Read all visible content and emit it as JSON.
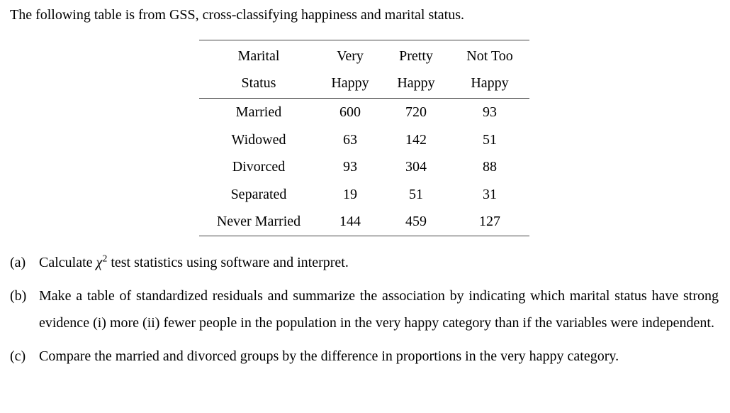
{
  "intro": "The following table is from GSS, cross-classifying happiness and marital status.",
  "table": {
    "header": {
      "col1": {
        "line1": "Marital",
        "line2": "Status"
      },
      "col2": {
        "line1": "Very",
        "line2": "Happy"
      },
      "col3": {
        "line1": "Pretty",
        "line2": "Happy"
      },
      "col4": {
        "line1": "Not Too",
        "line2": "Happy"
      }
    },
    "rows": [
      {
        "label": "Married",
        "very": "600",
        "pretty": "720",
        "nottoo": "93"
      },
      {
        "label": "Widowed",
        "very": "63",
        "pretty": "142",
        "nottoo": "51"
      },
      {
        "label": "Divorced",
        "very": "93",
        "pretty": "304",
        "nottoo": "88"
      },
      {
        "label": "Separated",
        "very": "19",
        "pretty": "51",
        "nottoo": "31"
      },
      {
        "label": "Never Married",
        "very": "144",
        "pretty": "459",
        "nottoo": "127"
      }
    ]
  },
  "questions": {
    "a": {
      "label": "(a)",
      "pre": "Calculate ",
      "chi": "χ",
      "sup": "2",
      "post": " test statistics using software and interpret."
    },
    "b": {
      "label": "(b)",
      "text": "Make a table of standardized residuals and summarize the association by indicating which marital status have strong evidence (i) more (ii) fewer people in the population in the very happy category than if the variables were independent."
    },
    "c": {
      "label": "(c)",
      "text": "Compare the married and divorced groups by the difference in proportions in the very happy category."
    }
  }
}
